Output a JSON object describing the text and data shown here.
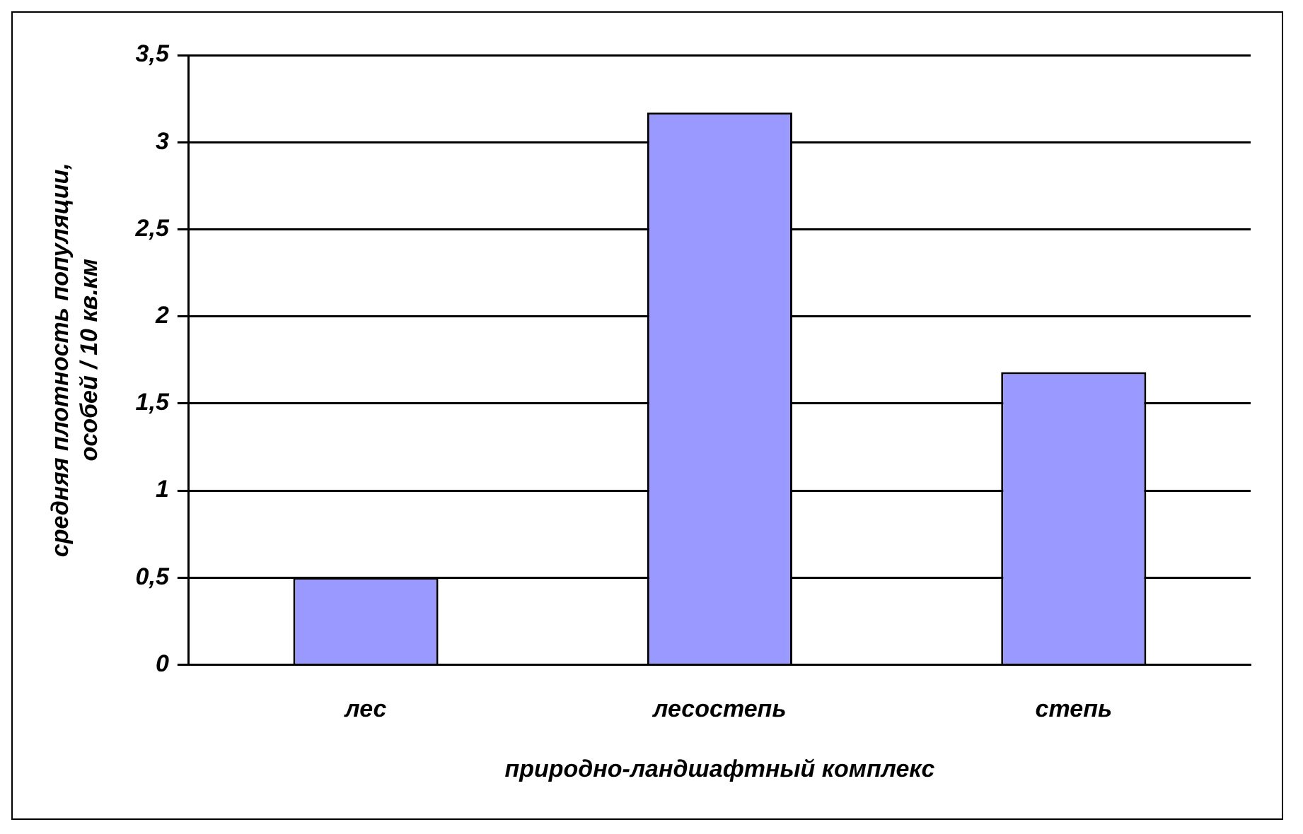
{
  "chart_data": {
    "type": "bar",
    "xlabel": "природно-ландшафтный комплекс",
    "ylabel": "средняя плотность популяции, особей / 10 кв.км",
    "categories": [
      "лес",
      "лесостепь",
      "степь"
    ],
    "values": [
      0.5,
      3.17,
      1.68
    ],
    "color": "#9999ff",
    "ylim": [
      0,
      3.5
    ],
    "yticks": [
      0,
      {
        "value": 0.5,
        "label": "0,5"
      },
      1,
      {
        "value": 1.5,
        "label": "1,5"
      },
      2,
      {
        "value": 2.5,
        "label": "2,5"
      },
      3,
      {
        "value": 3.5,
        "label": "3,5"
      }
    ],
    "grid": "y",
    "legend": false
  }
}
